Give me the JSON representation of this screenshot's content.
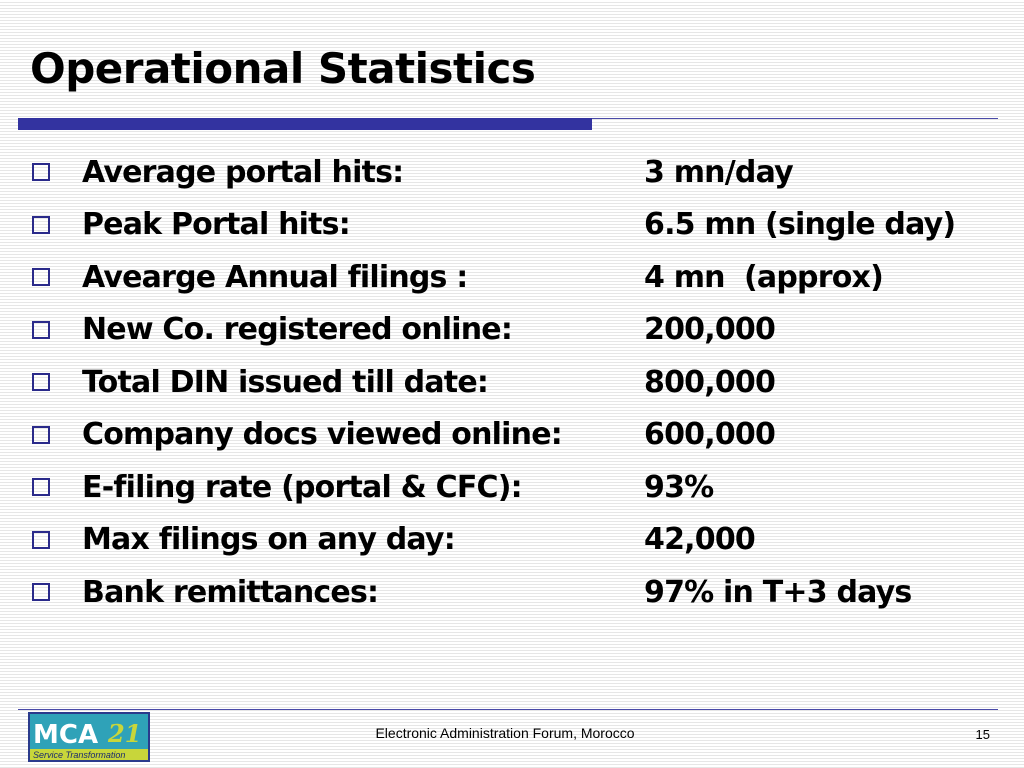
{
  "slide": {
    "title": "Operational Statistics",
    "bullet_icon": "hollow-square-bullet",
    "accent_color": "#3333a0",
    "items": [
      {
        "label": "Average portal hits:",
        "value": "3 mn/day"
      },
      {
        "label": "Peak Portal hits:",
        "value": "6.5 mn (single day)"
      },
      {
        "label": "Avearge Annual filings :",
        "value": "4 mn  (approx)"
      },
      {
        "label": "New Co. registered online:",
        "value": "200,000"
      },
      {
        "label": "Total DIN issued till date:",
        "value": "800,000"
      },
      {
        "label": "Company docs viewed online:",
        "value": "600,000"
      },
      {
        "label": "E-filing rate (portal & CFC):",
        "value": "93%"
      },
      {
        "label": "Max filings on any day:",
        "value": "42,000"
      },
      {
        "label": "Bank remittances:",
        "value": "97% in T+3 days"
      }
    ]
  },
  "footer": {
    "logo": {
      "text_main": "MCA",
      "text_number": "21",
      "tagline": "Service Transformation"
    },
    "event": "Electronic Administration Forum, Morocco",
    "page_number": "15"
  }
}
